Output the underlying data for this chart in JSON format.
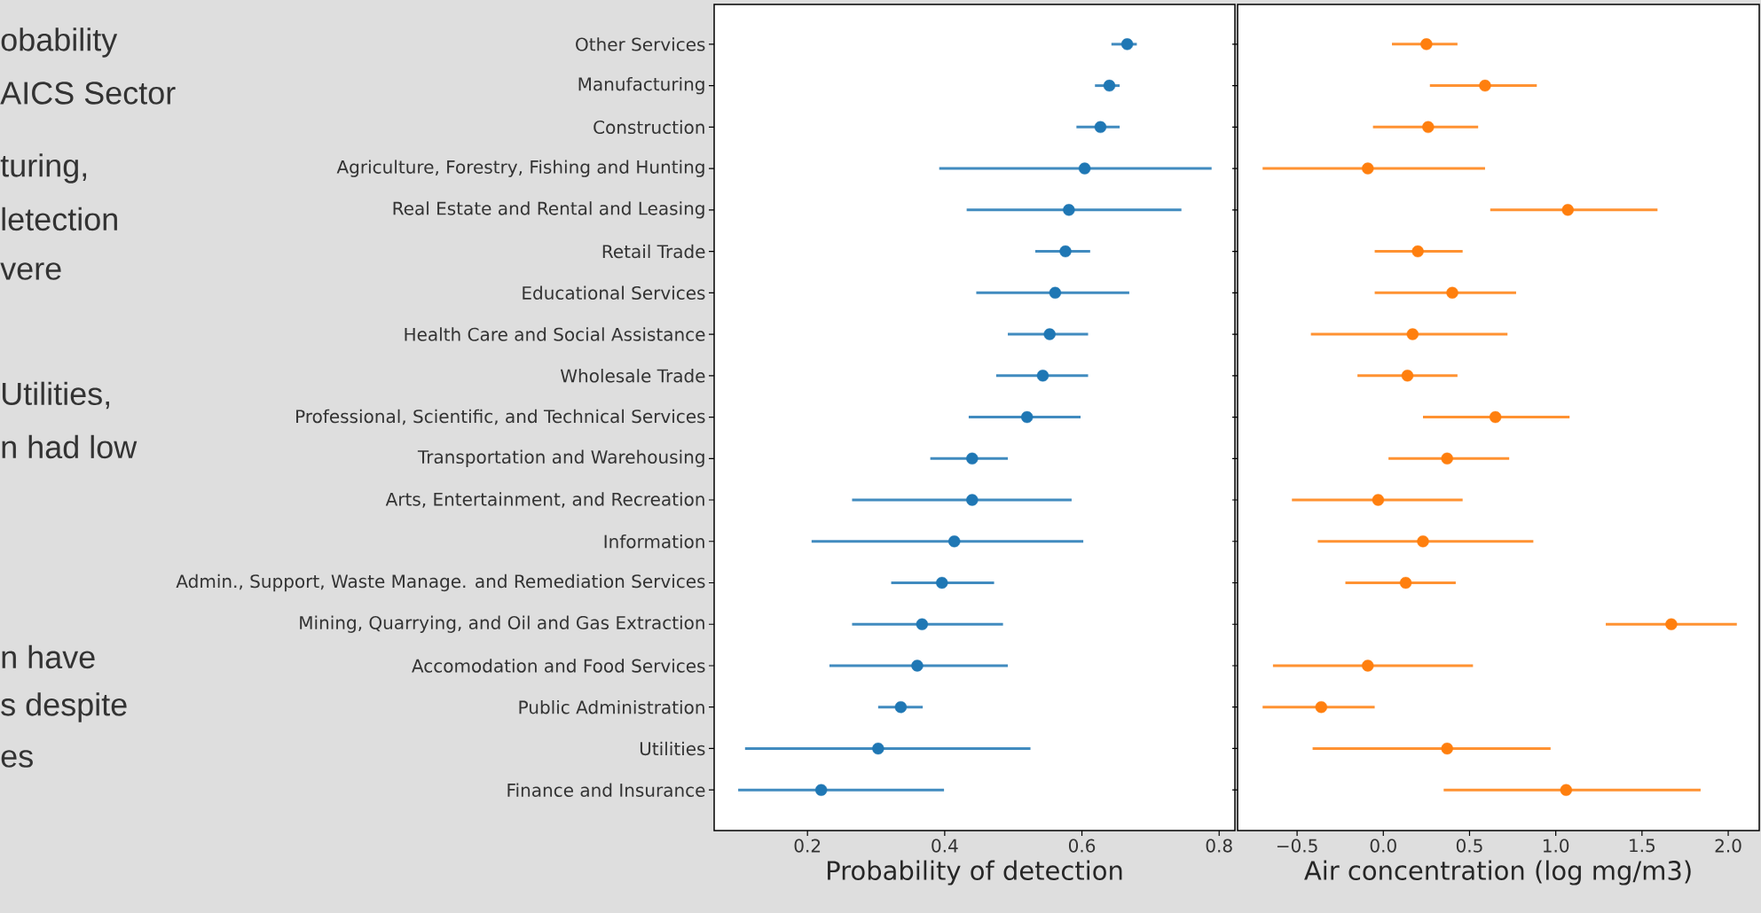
{
  "chart_data": [
    {
      "type": "scatter",
      "orientation": "horizontal",
      "xlabel": "Probability of detection",
      "marker": "circle",
      "grid": false,
      "categories": [
        "Other Services",
        "Manufacturing",
        "Construction",
        "Agriculture, Forestry, Fishing and Hunting",
        "Real Estate and Rental and Leasing",
        "Retail Trade",
        "Educational Services",
        "Health Care and Social Assistance",
        "Wholesale Trade",
        "Professional, Scientific, and Technical Services",
        "Transportation and Warehousing",
        "Arts, Entertainment, and Recreation",
        "Information",
        "Admin., Support, Waste Manage. and Remediation Services",
        "Mining, Quarrying, and Oil and Gas Extraction",
        "Accomodation and Food Services",
        "Public Administration",
        "Utilities",
        "Finance and Insurance"
      ],
      "series": [
        {
          "color": "#1f77b4",
          "values": [
            0.666,
            0.64,
            0.627,
            0.604,
            0.581,
            0.576,
            0.561,
            0.553,
            0.543,
            0.52,
            0.44,
            0.44,
            0.414,
            0.396,
            0.367,
            0.36,
            0.336,
            0.303,
            0.22
          ],
          "errors": [
            [
              0.643,
              0.68
            ],
            [
              0.619,
              0.655
            ],
            [
              0.592,
              0.655
            ],
            [
              0.392,
              0.789
            ],
            [
              0.432,
              0.745
            ],
            [
              0.532,
              0.612
            ],
            [
              0.446,
              0.669
            ],
            [
              0.492,
              0.609
            ],
            [
              0.475,
              0.609
            ],
            [
              0.435,
              0.598
            ],
            [
              0.379,
              0.492
            ],
            [
              0.265,
              0.585
            ],
            [
              0.206,
              0.602
            ],
            [
              0.322,
              0.472
            ],
            [
              0.265,
              0.485
            ],
            [
              0.232,
              0.492
            ],
            [
              0.303,
              0.368
            ],
            [
              0.109,
              0.525
            ],
            [
              0.099,
              0.399
            ]
          ]
        }
      ],
      "xlim": [
        0.064,
        0.823
      ],
      "xticks": [
        0.2,
        0.4,
        0.6,
        0.8
      ],
      "annotations": [
        "obability",
        "AICS Sector",
        "turing,",
        "letection",
        "vere",
        "Utilities,",
        "n had low",
        "n have",
        "s despite",
        "es"
      ]
    },
    {
      "type": "scatter",
      "orientation": "horizontal",
      "xlabel": "Air concentration (log mg/m3)",
      "marker": "circle",
      "grid": false,
      "tick_labels": "x",
      "categories": [
        null,
        null,
        null,
        null,
        null,
        null,
        null,
        null,
        null,
        null,
        null,
        null,
        null,
        null,
        null,
        null,
        null,
        null,
        null
      ],
      "series": [
        {
          "color": "#ff7f0e",
          "values": [
            0.25,
            0.59,
            0.26,
            -0.09,
            1.07,
            0.2,
            0.4,
            0.17,
            0.14,
            0.65,
            0.37,
            -0.03,
            0.23,
            0.13,
            1.67,
            -0.09,
            -0.36,
            0.37,
            1.06
          ],
          "errors": [
            [
              0.05,
              0.43
            ],
            [
              0.27,
              0.89
            ],
            [
              -0.06,
              0.55
            ],
            [
              -0.7,
              0.59
            ],
            [
              0.62,
              1.59
            ],
            [
              -0.05,
              0.46
            ],
            [
              -0.05,
              0.77
            ],
            [
              -0.42,
              0.72
            ],
            [
              -0.15,
              0.43
            ],
            [
              0.23,
              1.08
            ],
            [
              0.03,
              0.73
            ],
            [
              -0.53,
              0.46
            ],
            [
              -0.38,
              0.87
            ],
            [
              -0.22,
              0.42
            ],
            [
              1.29,
              2.05
            ],
            [
              -0.64,
              0.52
            ],
            [
              -0.7,
              -0.05
            ],
            [
              -0.41,
              0.97
            ],
            [
              0.35,
              1.84
            ]
          ]
        }
      ],
      "xlim": [
        -0.845,
        2.18
      ],
      "xticks": [
        {
          "value": -0.5,
          "label": "−0.5"
        },
        {
          "value": 0,
          "label": "0.0"
        },
        {
          "value": 0.5,
          "label": "0.5"
        },
        {
          "value": 1,
          "label": "1.0"
        },
        {
          "value": 1.5,
          "label": "1.5"
        },
        {
          "value": 2,
          "label": "2.0"
        }
      ]
    }
  ]
}
